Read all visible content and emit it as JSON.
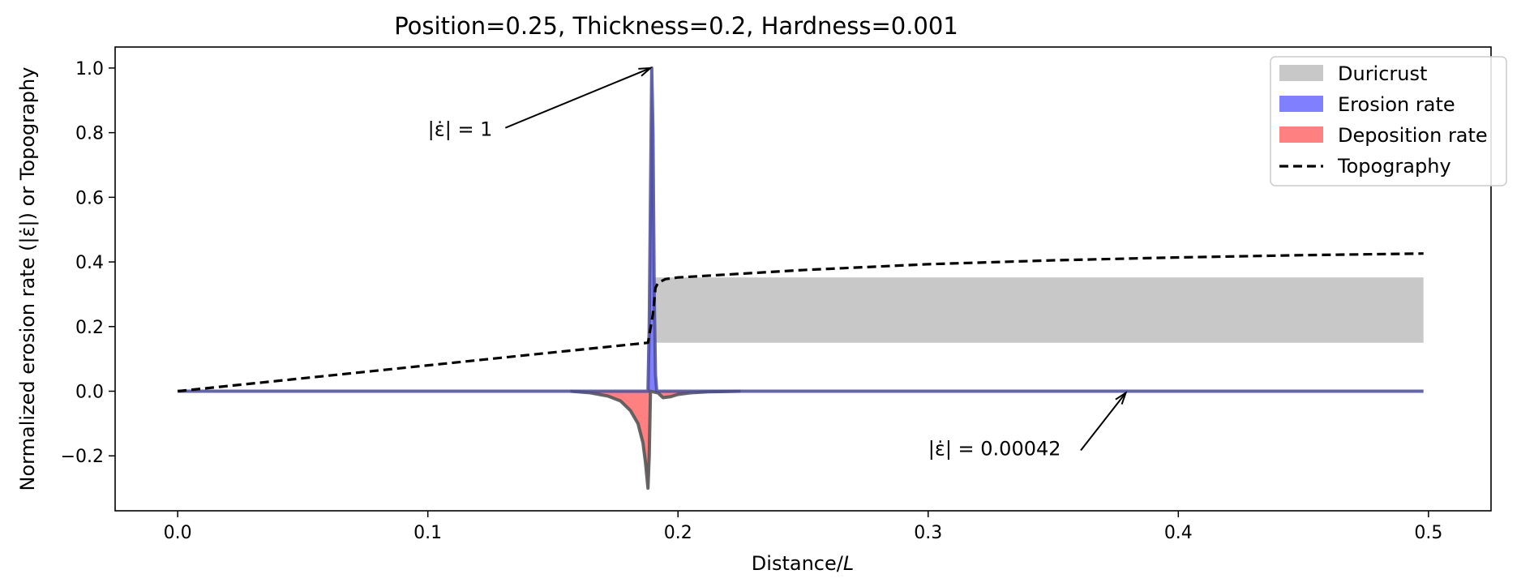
{
  "chart_data": {
    "type": "line",
    "title": "Position=0.25, Thickness=0.2, Hardness=0.001",
    "xlabel": "Distance/",
    "xlabel_italic": "L",
    "ylabel": "Normalized erosion rate (|ε̇|) or Topography",
    "xlim": [
      -0.025,
      0.525
    ],
    "ylim": [
      -0.37,
      1.065
    ],
    "xticks": [
      0.0,
      0.1,
      0.2,
      0.3,
      0.4,
      0.5
    ],
    "xtick_labels": [
      "0.0",
      "0.1",
      "0.2",
      "0.3",
      "0.4",
      "0.5"
    ],
    "yticks": [
      -0.2,
      0.0,
      0.2,
      0.4,
      0.6,
      0.8,
      1.0
    ],
    "ytick_labels": [
      "−0.2",
      "0.0",
      "0.2",
      "0.4",
      "0.6",
      "0.8",
      "1.0"
    ],
    "grid": false,
    "legend_position": "top-right",
    "legend": [
      {
        "label": "Duricrust",
        "kind": "patch",
        "color": "#c8c8c8"
      },
      {
        "label": "Erosion rate",
        "kind": "patch",
        "color": "#8080ff"
      },
      {
        "label": "Deposition rate",
        "kind": "patch",
        "color": "#ff8080"
      },
      {
        "label": "Topography",
        "kind": "dashed-line",
        "color": "#000000"
      }
    ],
    "duricrust": {
      "x_start": 0.19,
      "x_end": 0.498,
      "y_bottom": 0.15,
      "y_top": 0.352
    },
    "topography": {
      "x": [
        0.0,
        0.05,
        0.1,
        0.15,
        0.188,
        0.19,
        0.191,
        0.192,
        0.195,
        0.2,
        0.25,
        0.3,
        0.35,
        0.4,
        0.45,
        0.498
      ],
      "y": [
        0.0,
        0.04,
        0.08,
        0.12,
        0.15,
        0.24,
        0.32,
        0.335,
        0.347,
        0.352,
        0.375,
        0.393,
        0.405,
        0.414,
        0.421,
        0.426
      ]
    },
    "erosion_rate": {
      "x": [
        0.0,
        0.188,
        0.1885,
        0.189,
        0.1895,
        0.19,
        0.1905,
        0.191,
        0.1915,
        0.498
      ],
      "y": [
        0.0,
        0.0,
        0.2,
        0.6,
        1.0,
        0.8,
        0.3,
        0.05,
        0.0,
        0.0
      ]
    },
    "deposition_rate": {
      "x": [
        0.157,
        0.165,
        0.172,
        0.177,
        0.181,
        0.184,
        0.186,
        0.187,
        0.188,
        0.1885,
        0.189,
        0.192,
        0.194,
        0.197,
        0.2,
        0.205,
        0.212,
        0.225
      ],
      "y": [
        0.0,
        -0.005,
        -0.015,
        -0.03,
        -0.06,
        -0.1,
        -0.16,
        -0.22,
        -0.3,
        -0.2,
        0.0,
        -0.005,
        -0.02,
        -0.017,
        -0.01,
        -0.005,
        -0.002,
        0.0
      ]
    },
    "annotations": [
      {
        "text": "|ε̇| = 1",
        "text_x": 0.1,
        "text_y": 0.81,
        "arrow_start": [
          0.131,
          0.815
        ],
        "arrow_end": [
          0.189,
          1.0
        ]
      },
      {
        "text": "|ε̇| = 0.00042",
        "text_x": 0.3,
        "text_y": -0.178,
        "arrow_start": [
          0.361,
          -0.183
        ],
        "arrow_end": [
          0.379,
          -0.005
        ]
      }
    ]
  }
}
